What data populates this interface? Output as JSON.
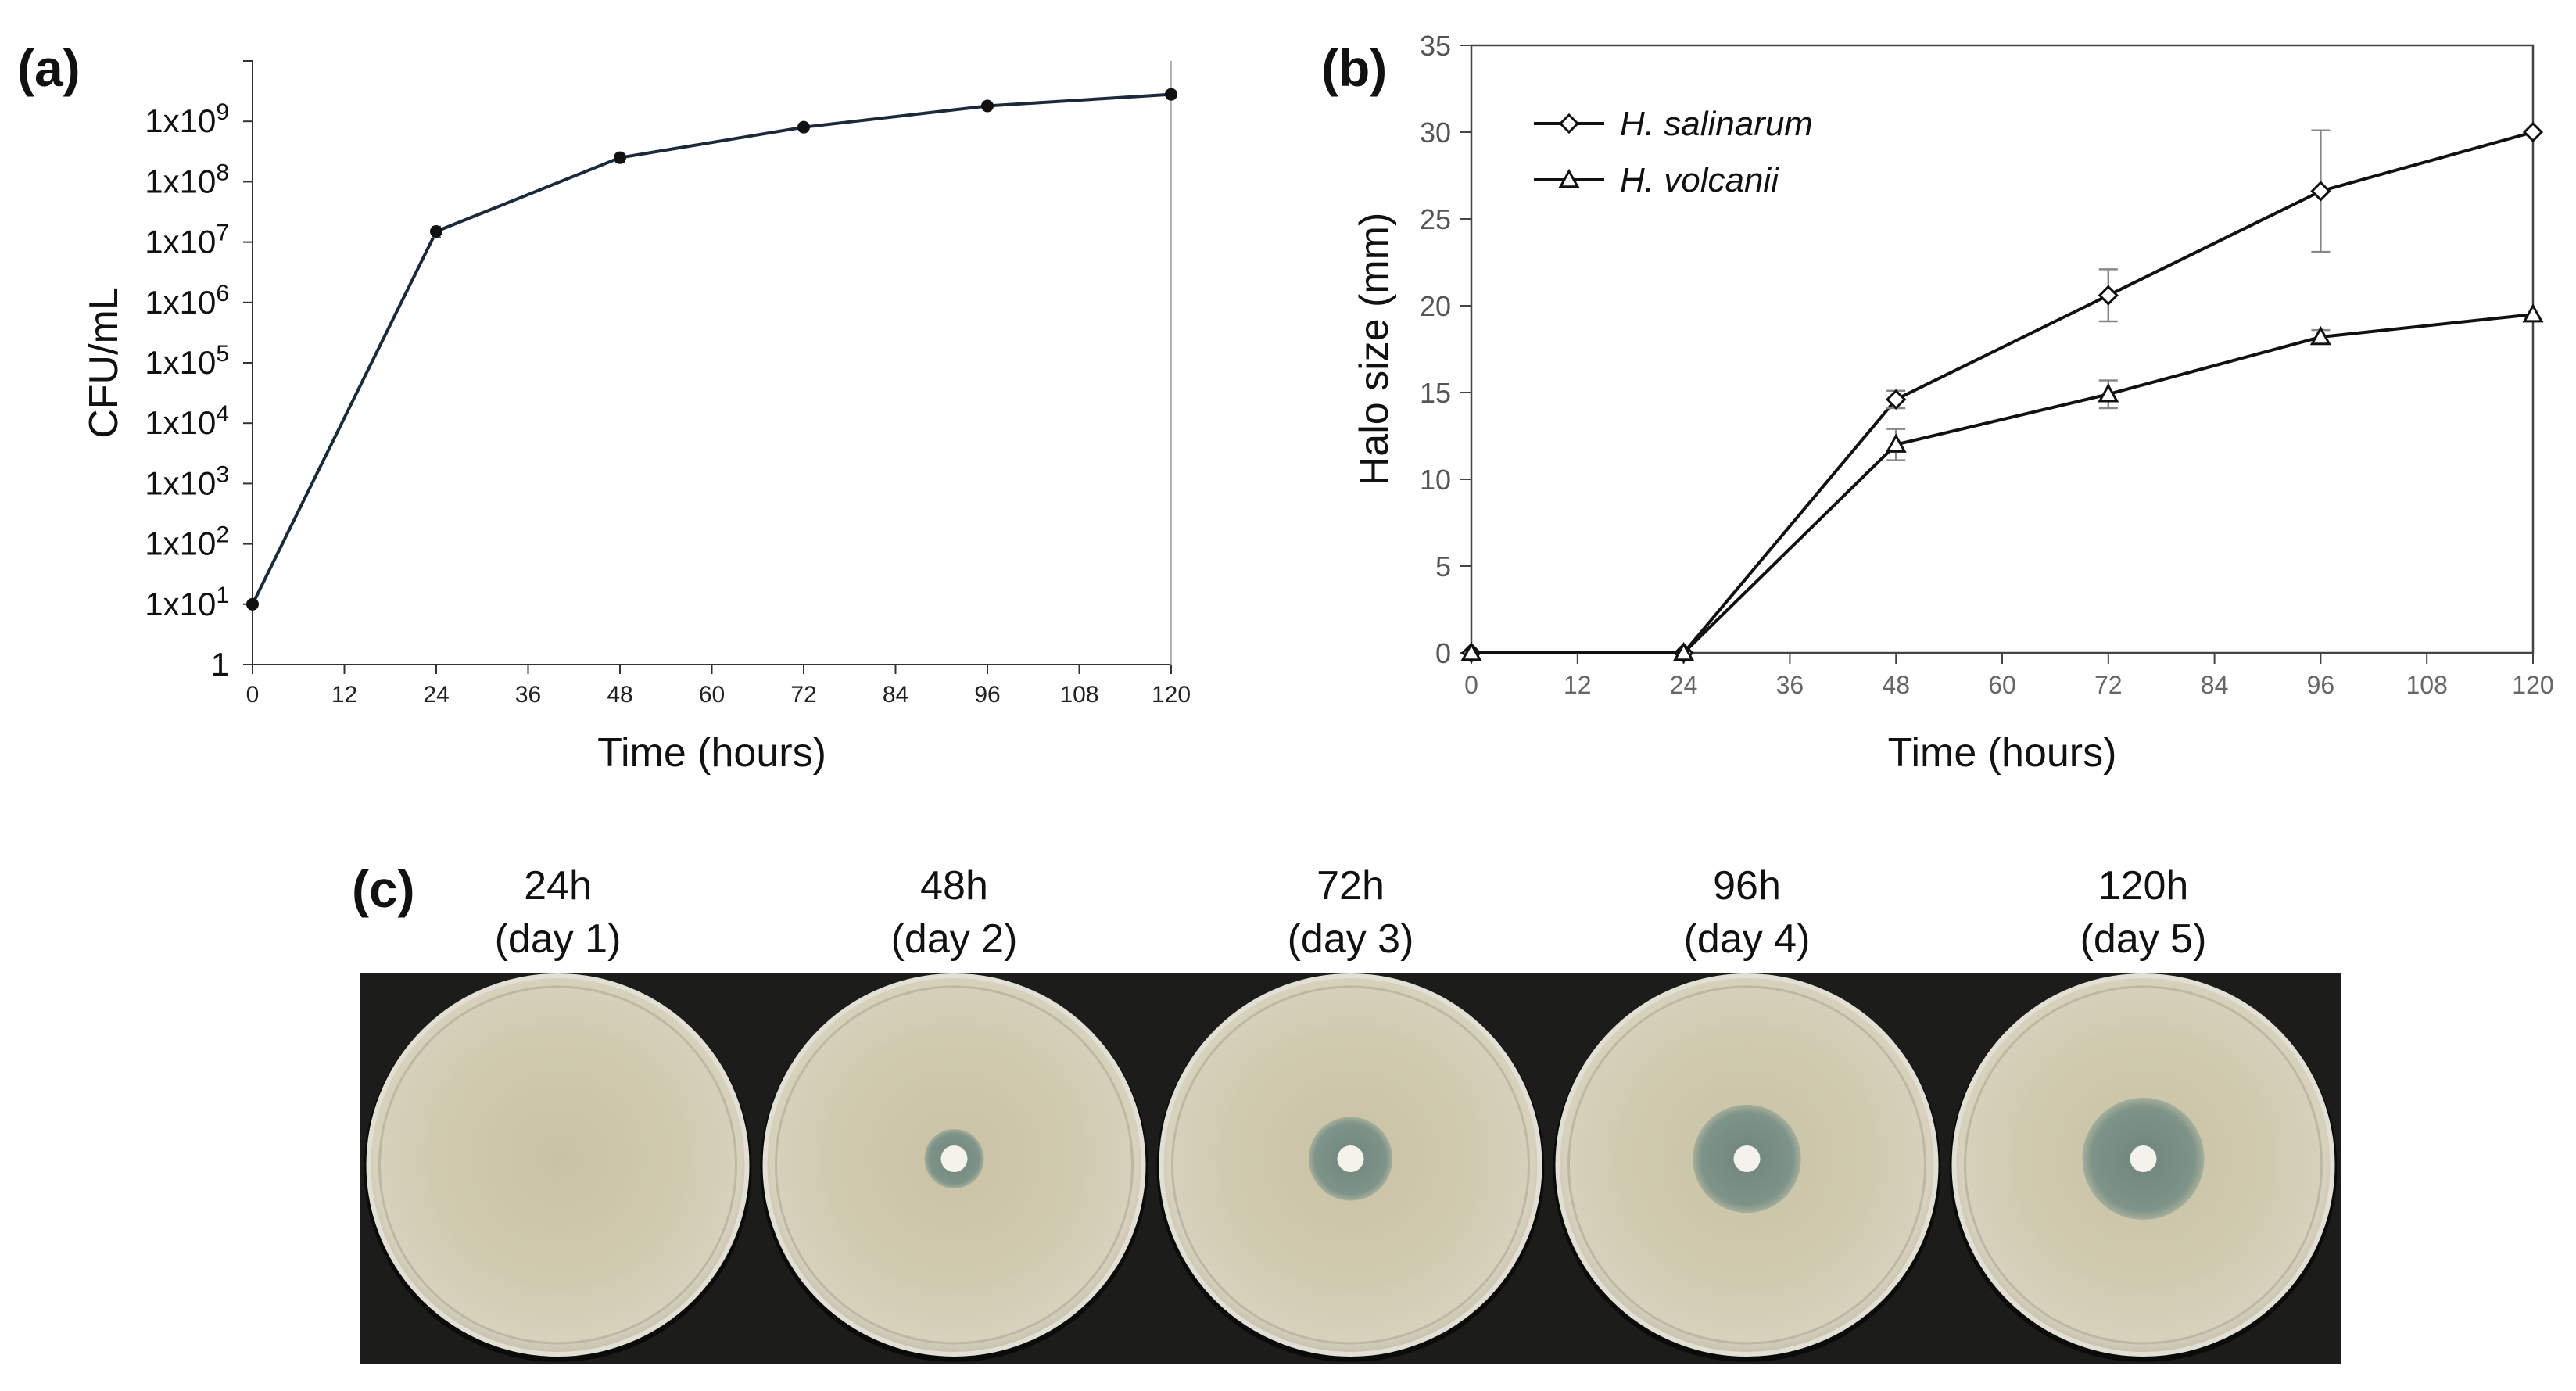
{
  "panels": {
    "a": "(a)",
    "b": "(b)",
    "c": "(c)"
  },
  "chart_data": [
    {
      "id": "a",
      "type": "line",
      "scale_y": "log",
      "title": "",
      "xlabel": "Time (hours)",
      "ylabel": "CFU/mL",
      "xlim": [
        0,
        120
      ],
      "x_ticks": [
        "0",
        "12",
        "24",
        "36",
        "48",
        "60",
        "72",
        "84",
        "96",
        "108",
        "120"
      ],
      "y_tick_labels": [
        {
          "v": 0,
          "label": "1"
        },
        {
          "v": 1,
          "base": "1x10",
          "exp": "1"
        },
        {
          "v": 2,
          "base": "1x10",
          "exp": "2"
        },
        {
          "v": 3,
          "base": "1x10",
          "exp": "3"
        },
        {
          "v": 4,
          "base": "1x10",
          "exp": "4"
        },
        {
          "v": 5,
          "base": "1x10",
          "exp": "5"
        },
        {
          "v": 6,
          "base": "1x10",
          "exp": "6"
        },
        {
          "v": 7,
          "base": "1x10",
          "exp": "7"
        },
        {
          "v": 8,
          "base": "1x10",
          "exp": "8"
        },
        {
          "v": 9,
          "base": "1x10",
          "exp": "9"
        }
      ],
      "ylim_log10": [
        0,
        10
      ],
      "series": [
        {
          "name": "CFU/mL",
          "x": [
            0,
            24,
            48,
            72,
            96,
            120
          ],
          "y": [
            10,
            15000000,
            250000000,
            800000000,
            1800000000,
            2800000000
          ],
          "err": [
            0,
            3000000,
            40000000,
            80000000,
            200000000,
            200000000
          ]
        }
      ],
      "colors": {
        "line": "#1a2a3a",
        "marker": "#111111"
      }
    },
    {
      "id": "b",
      "type": "line",
      "title": "",
      "xlabel": "Time (hours)",
      "ylabel": "Halo size (mm)",
      "xlim": [
        0,
        120
      ],
      "ylim": [
        0,
        35
      ],
      "x_ticks": [
        "0",
        "12",
        "24",
        "36",
        "48",
        "60",
        "72",
        "84",
        "96",
        "108",
        "120"
      ],
      "y_ticks": [
        "0",
        "5",
        "10",
        "15",
        "20",
        "25",
        "30",
        "35"
      ],
      "legend": [
        "H. salinarum",
        "H. volcanii"
      ],
      "series": [
        {
          "name": "H. salinarum",
          "marker": "diamond",
          "x": [
            0,
            24,
            48,
            72,
            96,
            120
          ],
          "y": [
            0,
            0,
            14.6,
            20.6,
            26.6,
            30
          ],
          "err": [
            0,
            0,
            0.5,
            1.5,
            3.5,
            0
          ]
        },
        {
          "name": "H. volcanii",
          "marker": "triangle",
          "x": [
            0,
            24,
            48,
            72,
            96,
            120
          ],
          "y": [
            0,
            0,
            12,
            14.9,
            18.2,
            19.5
          ],
          "err": [
            0,
            0,
            0.9,
            0.8,
            0.4,
            0
          ]
        }
      ],
      "colors": {
        "line": "#111111",
        "error": "#888888"
      }
    }
  ],
  "plates": [
    {
      "time": "24h",
      "day": "(day 1)",
      "halo_mm": 0
    },
    {
      "time": "48h",
      "day": "(day 2)",
      "halo_mm": 14.6
    },
    {
      "time": "72h",
      "day": "(day 3)",
      "halo_mm": 20.6
    },
    {
      "time": "96h",
      "day": "(day 4)",
      "halo_mm": 26.6
    },
    {
      "time": "120h",
      "day": "(day 5)",
      "halo_mm": 30
    }
  ],
  "colors": {
    "plate_background": "#1c1c1a",
    "agar": "#cfc9ae",
    "halo": "#7f9287",
    "disc": "#f4f2ea"
  }
}
